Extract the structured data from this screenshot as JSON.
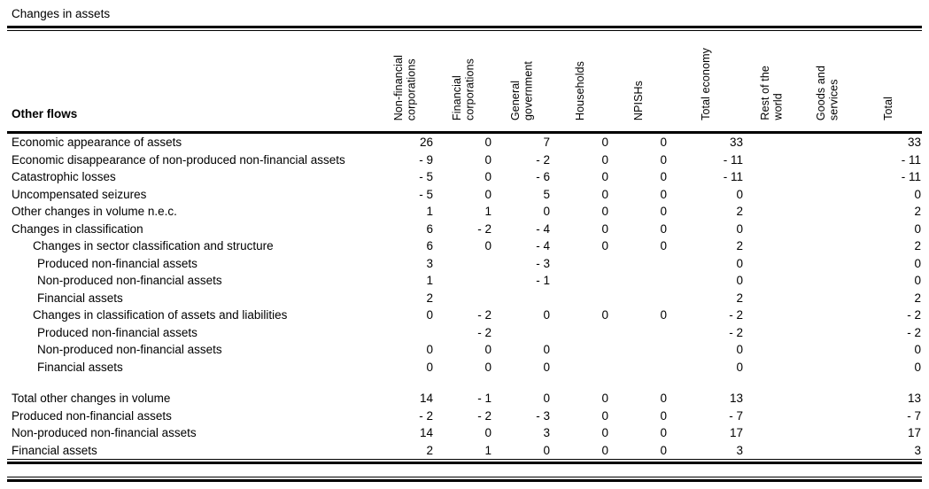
{
  "title": "Changes in assets",
  "table": {
    "row_header_label": "Other flows",
    "columns": [
      {
        "label": "Non-financial\ncorporations"
      },
      {
        "label": "Financial\ncorporations"
      },
      {
        "label": "General\ngovernment"
      },
      {
        "label": "Households"
      },
      {
        "label": "NPISHs"
      },
      {
        "label": "Total economy"
      },
      {
        "label": "Rest of the\nworld"
      },
      {
        "label": "Goods and\nservices"
      },
      {
        "label": "Total"
      }
    ],
    "rows": [
      {
        "label": "Economic appearance of assets",
        "indent": 0,
        "spacer_before": false,
        "values": [
          "26",
          "0",
          "7",
          "0",
          "0",
          "33",
          "",
          "",
          "33"
        ]
      },
      {
        "label": "Economic disappearance of non-produced non-financial assets",
        "indent": 0,
        "spacer_before": false,
        "values": [
          "- 9",
          "0",
          "- 2",
          "0",
          "0",
          "- 11",
          "",
          "",
          "- 11"
        ]
      },
      {
        "label": "Catastrophic losses",
        "indent": 0,
        "spacer_before": false,
        "values": [
          "- 5",
          "0",
          "- 6",
          "0",
          "0",
          "- 11",
          "",
          "",
          "- 11"
        ]
      },
      {
        "label": "Uncompensated seizures",
        "indent": 0,
        "spacer_before": false,
        "values": [
          "- 5",
          "0",
          "5",
          "0",
          "0",
          "0",
          "",
          "",
          "0"
        ]
      },
      {
        "label": "Other changes in volume n.e.c.",
        "indent": 0,
        "spacer_before": false,
        "values": [
          "1",
          "1",
          "0",
          "0",
          "0",
          "2",
          "",
          "",
          "2"
        ]
      },
      {
        "label": "Changes in classification",
        "indent": 0,
        "spacer_before": false,
        "values": [
          "6",
          "- 2",
          "- 4",
          "0",
          "0",
          "0",
          "",
          "",
          "0"
        ]
      },
      {
        "label": "Changes in sector classification and structure",
        "indent": 1,
        "spacer_before": false,
        "values": [
          "6",
          "0",
          "- 4",
          "0",
          "0",
          "2",
          "",
          "",
          "2"
        ]
      },
      {
        "label": "Produced non-financial assets",
        "indent": 2,
        "spacer_before": false,
        "values": [
          "3",
          "",
          "- 3",
          "",
          "",
          "0",
          "",
          "",
          "0"
        ]
      },
      {
        "label": "Non-produced non-financial assets",
        "indent": 2,
        "spacer_before": false,
        "values": [
          "1",
          "",
          "- 1",
          "",
          "",
          "0",
          "",
          "",
          "0"
        ]
      },
      {
        "label": "Financial assets",
        "indent": 2,
        "spacer_before": false,
        "values": [
          "2",
          "",
          "",
          "",
          "",
          "2",
          "",
          "",
          "2"
        ]
      },
      {
        "label": "Changes in classification of assets and liabilities",
        "indent": 1,
        "spacer_before": false,
        "values": [
          "0",
          "- 2",
          "0",
          "0",
          "0",
          "- 2",
          "",
          "",
          "- 2"
        ]
      },
      {
        "label": "Produced non-financial assets",
        "indent": 2,
        "spacer_before": false,
        "values": [
          "",
          "- 2",
          "",
          "",
          "",
          "- 2",
          "",
          "",
          "- 2"
        ]
      },
      {
        "label": "Non-produced non-financial assets",
        "indent": 2,
        "spacer_before": false,
        "values": [
          "0",
          "0",
          "0",
          "",
          "",
          "0",
          "",
          "",
          "0"
        ]
      },
      {
        "label": "Financial assets",
        "indent": 2,
        "spacer_before": false,
        "values": [
          "0",
          "0",
          "0",
          "",
          "",
          "0",
          "",
          "",
          "0"
        ]
      },
      {
        "label": "Total other changes in volume",
        "indent": 0,
        "spacer_before": true,
        "values": [
          "14",
          "- 1",
          "0",
          "0",
          "0",
          "13",
          "",
          "",
          "13"
        ]
      },
      {
        "label": "Produced non-financial assets",
        "indent": 0,
        "spacer_before": false,
        "values": [
          "- 2",
          "- 2",
          "- 3",
          "0",
          "0",
          "- 7",
          "",
          "",
          "- 7"
        ]
      },
      {
        "label": "Non-produced non-financial assets",
        "indent": 0,
        "spacer_before": false,
        "values": [
          "14",
          "0",
          "3",
          "0",
          "0",
          "17",
          "",
          "",
          "17"
        ]
      },
      {
        "label": "Financial assets",
        "indent": 0,
        "spacer_before": false,
        "values": [
          "2",
          "1",
          "0",
          "0",
          "0",
          "3",
          "",
          "",
          "3"
        ]
      }
    ]
  }
}
